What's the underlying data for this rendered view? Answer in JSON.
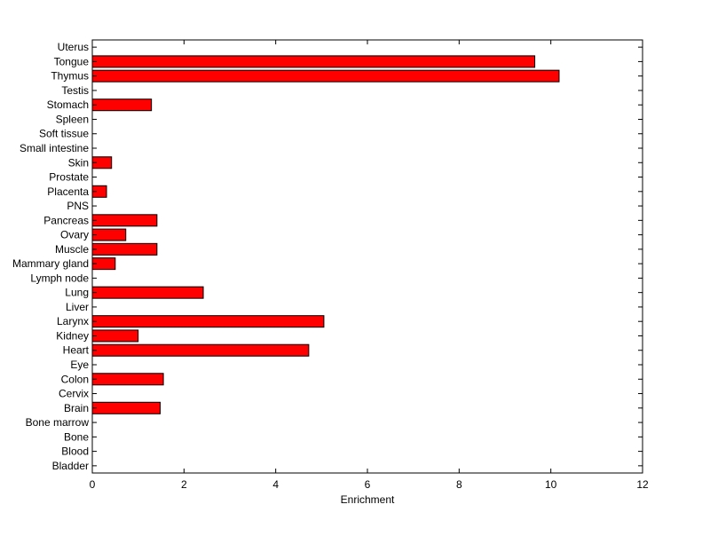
{
  "chart_data": {
    "type": "bar",
    "orientation": "horizontal",
    "title": "",
    "xlabel": "Enrichment",
    "ylabel": "",
    "xlim": [
      0,
      12
    ],
    "xticks": [
      "0",
      "2",
      "4",
      "6",
      "8",
      "10",
      "12"
    ],
    "grid": false,
    "bar_color": "#ff0000",
    "bar_edge_color": "#000000",
    "categories": [
      "Bladder",
      "Blood",
      "Bone",
      "Bone marrow",
      "Brain",
      "Cervix",
      "Colon",
      "Eye",
      "Heart",
      "Kidney",
      "Larynx",
      "Liver",
      "Lung",
      "Lymph node",
      "Mammary gland",
      "Muscle",
      "Ovary",
      "Pancreas",
      "PNS",
      "Placenta",
      "Prostate",
      "Skin",
      "Small intestine",
      "Soft tissue",
      "Spleen",
      "Stomach",
      "Testis",
      "Thymus",
      "Tongue",
      "Uterus"
    ],
    "values": [
      0,
      0,
      0,
      0,
      1.48,
      0,
      1.55,
      0,
      4.72,
      1.0,
      5.05,
      0,
      2.42,
      0,
      0.5,
      1.41,
      0.73,
      1.41,
      0,
      0.31,
      0,
      0.42,
      0,
      0,
      0,
      1.29,
      0,
      10.18,
      9.65,
      0
    ]
  }
}
